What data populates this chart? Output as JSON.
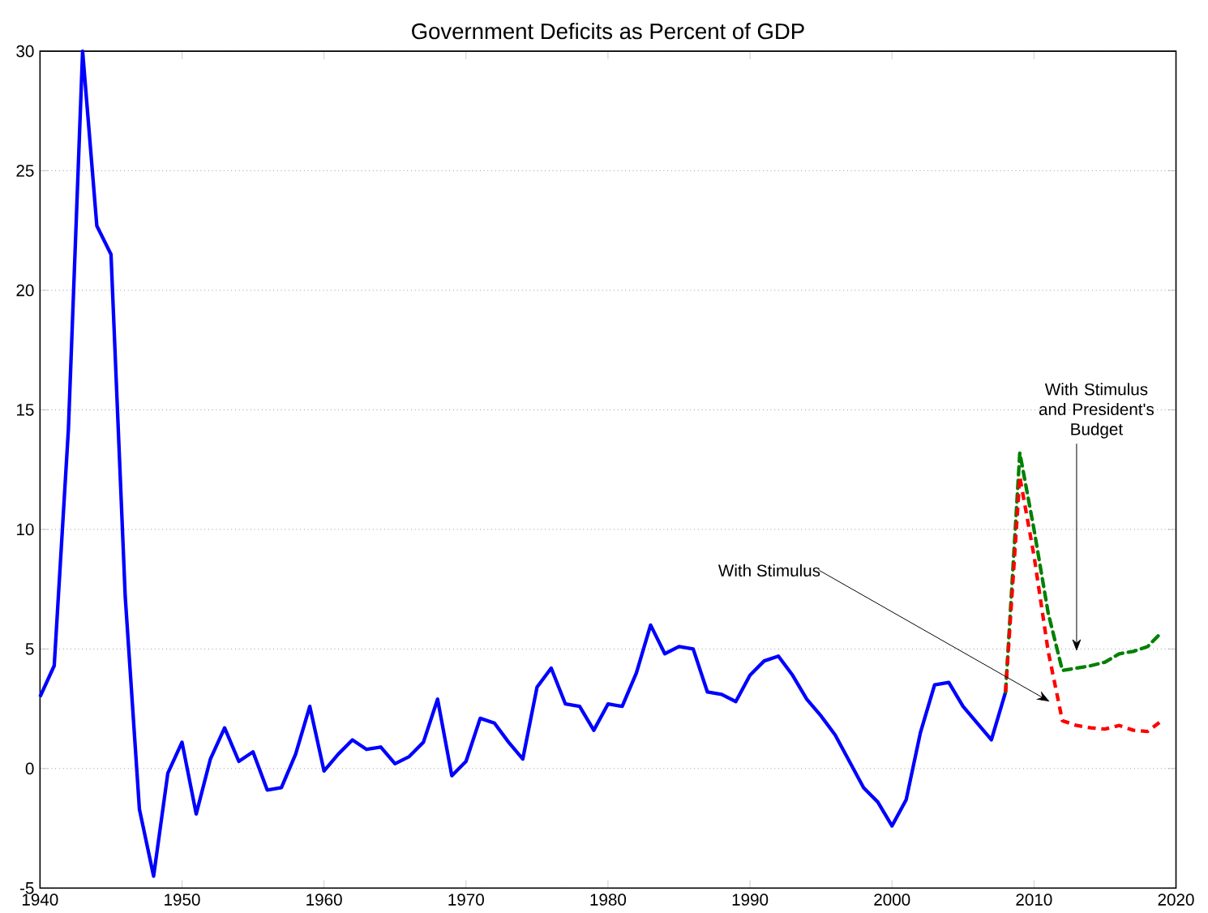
{
  "chart_data": {
    "type": "line",
    "title": "Government Deficits as Percent of GDP",
    "xlim": [
      1940,
      2020
    ],
    "ylim": [
      -5,
      30
    ],
    "xticks": [
      1940,
      1950,
      1960,
      1970,
      1980,
      1990,
      2000,
      2010,
      2020
    ],
    "yticks": [
      -5,
      0,
      5,
      10,
      15,
      20,
      25,
      30
    ],
    "grid": "y",
    "marker": "none",
    "series": [
      {
        "color": "#0000ff",
        "line_style": "solid",
        "x": [
          1940,
          1941,
          1942,
          1943,
          1944,
          1945,
          1946,
          1947,
          1948,
          1949,
          1950,
          1951,
          1952,
          1953,
          1954,
          1955,
          1956,
          1957,
          1958,
          1959,
          1960,
          1961,
          1962,
          1963,
          1964,
          1965,
          1966,
          1967,
          1968,
          1969,
          1970,
          1971,
          1972,
          1973,
          1974,
          1975,
          1976,
          1977,
          1978,
          1979,
          1980,
          1981,
          1982,
          1983,
          1984,
          1985,
          1986,
          1987,
          1988,
          1989,
          1990,
          1991,
          1992,
          1993,
          1994,
          1995,
          1996,
          1997,
          1998,
          1999,
          2000,
          2001,
          2002,
          2003,
          2004,
          2005,
          2006,
          2007,
          2008
        ],
        "values": [
          3.0,
          4.3,
          14.2,
          30.0,
          22.7,
          21.5,
          7.2,
          -1.7,
          -4.5,
          -0.2,
          1.1,
          -1.9,
          0.4,
          1.7,
          0.3,
          0.7,
          -0.9,
          -0.8,
          0.6,
          2.6,
          -0.1,
          0.6,
          1.2,
          0.8,
          0.9,
          0.2,
          0.5,
          1.1,
          2.9,
          -0.3,
          0.3,
          2.1,
          1.9,
          1.1,
          0.4,
          3.4,
          4.2,
          2.7,
          2.6,
          1.6,
          2.7,
          2.6,
          4.0,
          6.0,
          4.8,
          5.1,
          5.0,
          3.2,
          3.1,
          2.8,
          3.9,
          4.5,
          4.7,
          3.9,
          2.9,
          2.2,
          1.4,
          0.3,
          -0.8,
          -1.4,
          -2.4,
          -1.3,
          1.5,
          3.5,
          3.6,
          2.6,
          1.9,
          1.2,
          3.2
        ]
      },
      {
        "color": "#008000",
        "line_style": "dashed",
        "x": [
          2008,
          2009,
          2010,
          2011,
          2012,
          2013,
          2014,
          2015,
          2016,
          2017,
          2018,
          2019
        ],
        "values": [
          3.2,
          13.2,
          10.0,
          6.5,
          4.1,
          4.2,
          4.3,
          4.45,
          4.8,
          4.9,
          5.1,
          5.7
        ]
      },
      {
        "color": "#ff0000",
        "line_style": "dashed",
        "x": [
          2008,
          2009,
          2010,
          2011,
          2012,
          2013,
          2014,
          2015,
          2016,
          2017,
          2018,
          2019
        ],
        "values": [
          3.2,
          12.2,
          8.9,
          4.9,
          2.0,
          1.8,
          1.7,
          1.65,
          1.8,
          1.6,
          1.55,
          2.0
        ]
      }
    ],
    "annotations": [
      {
        "text": "With Stimulus",
        "x": 2011.1,
        "y": 2.8
      },
      "With Stimulus and President's Budget"
    ]
  }
}
